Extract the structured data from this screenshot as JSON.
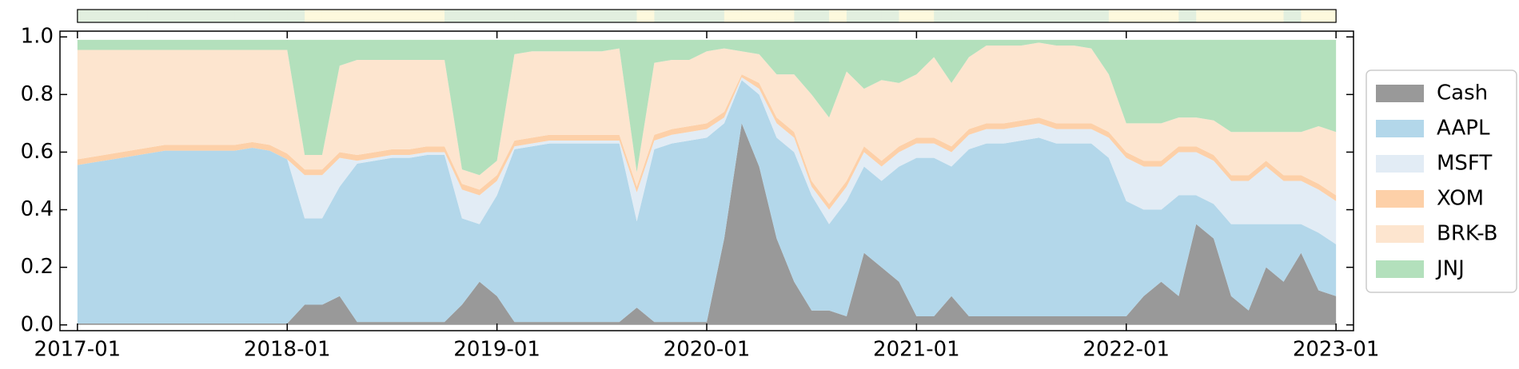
{
  "chart_data": {
    "type": "stacked_area",
    "x": [
      "2017-01",
      "2017-02",
      "2017-03",
      "2017-04",
      "2017-05",
      "2017-06",
      "2017-07",
      "2017-08",
      "2017-09",
      "2017-10",
      "2017-11",
      "2017-12",
      "2018-01",
      "2018-02",
      "2018-03",
      "2018-04",
      "2018-05",
      "2018-06",
      "2018-07",
      "2018-08",
      "2018-09",
      "2018-10",
      "2018-11",
      "2018-12",
      "2019-01",
      "2019-02",
      "2019-03",
      "2019-04",
      "2019-05",
      "2019-06",
      "2019-07",
      "2019-08",
      "2019-09",
      "2019-10",
      "2019-11",
      "2019-12",
      "2020-01",
      "2020-02",
      "2020-03",
      "2020-04",
      "2020-05",
      "2020-06",
      "2020-07",
      "2020-08",
      "2020-09",
      "2020-10",
      "2020-11",
      "2020-12",
      "2021-01",
      "2021-02",
      "2021-03",
      "2021-04",
      "2021-05",
      "2021-06",
      "2021-07",
      "2021-08",
      "2021-09",
      "2021-10",
      "2021-11",
      "2021-12",
      "2022-01",
      "2022-02",
      "2022-03",
      "2022-04",
      "2022-05",
      "2022-06",
      "2022-07",
      "2022-08",
      "2022-09",
      "2022-10",
      "2022-11",
      "2022-12",
      "2023-01"
    ],
    "series": [
      {
        "name": "Cash",
        "color": "#999999",
        "values": [
          0.005,
          0.005,
          0.005,
          0.005,
          0.005,
          0.005,
          0.005,
          0.005,
          0.005,
          0.005,
          0.005,
          0.005,
          0.005,
          0.07,
          0.07,
          0.1,
          0.01,
          0.01,
          0.01,
          0.01,
          0.01,
          0.01,
          0.07,
          0.15,
          0.1,
          0.01,
          0.01,
          0.01,
          0.01,
          0.01,
          0.01,
          0.01,
          0.06,
          0.01,
          0.01,
          0.01,
          0.01,
          0.3,
          0.7,
          0.55,
          0.3,
          0.15,
          0.05,
          0.05,
          0.03,
          0.25,
          0.2,
          0.15,
          0.03,
          0.03,
          0.1,
          0.03,
          0.03,
          0.03,
          0.03,
          0.03,
          0.03,
          0.03,
          0.03,
          0.03,
          0.03,
          0.1,
          0.15,
          0.1,
          0.35,
          0.3,
          0.1,
          0.05,
          0.2,
          0.15,
          0.25,
          0.12,
          0.1
        ]
      },
      {
        "name": "AAPL",
        "color": "#b3d7ea",
        "values": [
          0.55,
          0.56,
          0.57,
          0.58,
          0.59,
          0.6,
          0.6,
          0.6,
          0.6,
          0.6,
          0.61,
          0.6,
          0.57,
          0.3,
          0.3,
          0.38,
          0.55,
          0.56,
          0.57,
          0.57,
          0.58,
          0.58,
          0.3,
          0.2,
          0.35,
          0.6,
          0.61,
          0.62,
          0.62,
          0.62,
          0.62,
          0.62,
          0.3,
          0.6,
          0.62,
          0.63,
          0.64,
          0.4,
          0.15,
          0.25,
          0.35,
          0.45,
          0.4,
          0.3,
          0.4,
          0.3,
          0.3,
          0.4,
          0.55,
          0.55,
          0.45,
          0.58,
          0.6,
          0.6,
          0.61,
          0.62,
          0.6,
          0.6,
          0.6,
          0.55,
          0.4,
          0.3,
          0.25,
          0.35,
          0.1,
          0.12,
          0.25,
          0.3,
          0.15,
          0.2,
          0.1,
          0.2,
          0.18
        ]
      },
      {
        "name": "MSFT",
        "color": "#e2ecf5",
        "values": [
          0,
          0,
          0,
          0,
          0,
          0,
          0,
          0,
          0,
          0,
          0,
          0,
          0,
          0.15,
          0.15,
          0.1,
          0.01,
          0.01,
          0.01,
          0.01,
          0.01,
          0.01,
          0.1,
          0.1,
          0.05,
          0.01,
          0.01,
          0.01,
          0.01,
          0.01,
          0.01,
          0.01,
          0.1,
          0.03,
          0.03,
          0.03,
          0.03,
          0.02,
          0.01,
          0.02,
          0.05,
          0.05,
          0.03,
          0.05,
          0.05,
          0.05,
          0.05,
          0.05,
          0.05,
          0.05,
          0.05,
          0.05,
          0.05,
          0.05,
          0.05,
          0.05,
          0.05,
          0.05,
          0.05,
          0.07,
          0.15,
          0.15,
          0.15,
          0.15,
          0.15,
          0.15,
          0.15,
          0.15,
          0.2,
          0.15,
          0.15,
          0.15,
          0.15
        ]
      },
      {
        "name": "XOM",
        "color": "#fdd0a8",
        "values": [
          0.02,
          0.02,
          0.02,
          0.02,
          0.02,
          0.02,
          0.02,
          0.02,
          0.02,
          0.02,
          0.02,
          0.02,
          0.02,
          0.02,
          0.02,
          0.02,
          0.02,
          0.02,
          0.02,
          0.02,
          0.02,
          0.02,
          0.02,
          0.02,
          0.02,
          0.02,
          0.02,
          0.02,
          0.02,
          0.02,
          0.02,
          0.02,
          0.02,
          0.02,
          0.02,
          0.02,
          0.02,
          0.02,
          0.01,
          0.02,
          0.02,
          0.02,
          0.02,
          0.02,
          0.02,
          0.02,
          0.02,
          0.02,
          0.02,
          0.02,
          0.02,
          0.02,
          0.02,
          0.02,
          0.02,
          0.02,
          0.02,
          0.02,
          0.02,
          0.02,
          0.02,
          0.02,
          0.02,
          0.02,
          0.02,
          0.02,
          0.02,
          0.02,
          0.02,
          0.02,
          0.02,
          0.02,
          0.02
        ]
      },
      {
        "name": "BRK-B",
        "color": "#fde5cf",
        "values": [
          0.38,
          0.37,
          0.36,
          0.35,
          0.34,
          0.33,
          0.33,
          0.33,
          0.33,
          0.33,
          0.32,
          0.33,
          0.36,
          0.05,
          0.05,
          0.3,
          0.33,
          0.32,
          0.31,
          0.31,
          0.3,
          0.3,
          0.05,
          0.05,
          0.05,
          0.3,
          0.3,
          0.29,
          0.29,
          0.29,
          0.29,
          0.3,
          0.05,
          0.25,
          0.24,
          0.23,
          0.25,
          0.22,
          0.08,
          0.1,
          0.15,
          0.2,
          0.3,
          0.3,
          0.38,
          0.2,
          0.28,
          0.22,
          0.22,
          0.28,
          0.22,
          0.25,
          0.27,
          0.27,
          0.26,
          0.26,
          0.27,
          0.27,
          0.26,
          0.2,
          0.1,
          0.13,
          0.13,
          0.1,
          0.1,
          0.12,
          0.15,
          0.15,
          0.1,
          0.15,
          0.15,
          0.2,
          0.22
        ]
      },
      {
        "name": "JNJ",
        "color": "#b3e0bc",
        "values": [
          0.035,
          0.035,
          0.035,
          0.035,
          0.035,
          0.035,
          0.035,
          0.035,
          0.035,
          0.035,
          0.035,
          0.035,
          0.035,
          0.4,
          0.4,
          0.09,
          0.07,
          0.07,
          0.07,
          0.07,
          0.07,
          0.07,
          0.45,
          0.47,
          0.42,
          0.05,
          0.04,
          0.04,
          0.04,
          0.04,
          0.04,
          0.03,
          0.46,
          0.08,
          0.07,
          0.07,
          0.04,
          0.03,
          0.04,
          0.05,
          0.12,
          0.12,
          0.19,
          0.27,
          0.11,
          0.17,
          0.14,
          0.15,
          0.12,
          0.06,
          0.15,
          0.06,
          0.02,
          0.02,
          0.02,
          0.01,
          0.02,
          0.02,
          0.03,
          0.12,
          0.29,
          0.29,
          0.29,
          0.27,
          0.27,
          0.28,
          0.32,
          0.32,
          0.32,
          0.32,
          0.32,
          0.3,
          0.32
        ]
      }
    ],
    "regime": {
      "colors": [
        "#e2efdf",
        "#fdf9dd"
      ],
      "values": [
        0,
        0,
        0,
        0,
        0,
        0,
        0,
        0,
        0,
        0,
        0,
        0,
        0,
        1,
        1,
        1,
        1,
        1,
        1,
        1,
        1,
        0,
        0,
        0,
        0,
        0,
        0,
        0,
        0,
        0,
        0,
        0,
        1,
        0,
        0,
        0,
        0,
        1,
        1,
        1,
        1,
        0,
        0,
        1,
        0,
        0,
        0,
        1,
        1,
        0,
        0,
        0,
        0,
        0,
        0,
        0,
        0,
        0,
        0,
        1,
        1,
        1,
        1,
        0,
        1,
        1,
        1,
        1,
        1,
        0,
        1,
        1
      ]
    },
    "xlim": [
      "2016-12",
      "2023-02"
    ],
    "xticks": [
      "2017-01",
      "2018-01",
      "2019-01",
      "2020-01",
      "2021-01",
      "2022-01",
      "2023-01"
    ],
    "ylim": [
      -0.02,
      1.02
    ],
    "yticks": [
      {
        "value": 0,
        "label": "0.0"
      },
      0.2,
      0.4,
      0.6,
      0.8,
      {
        "value": 1,
        "label": "1.0"
      }
    ],
    "legend": "outside-right"
  }
}
